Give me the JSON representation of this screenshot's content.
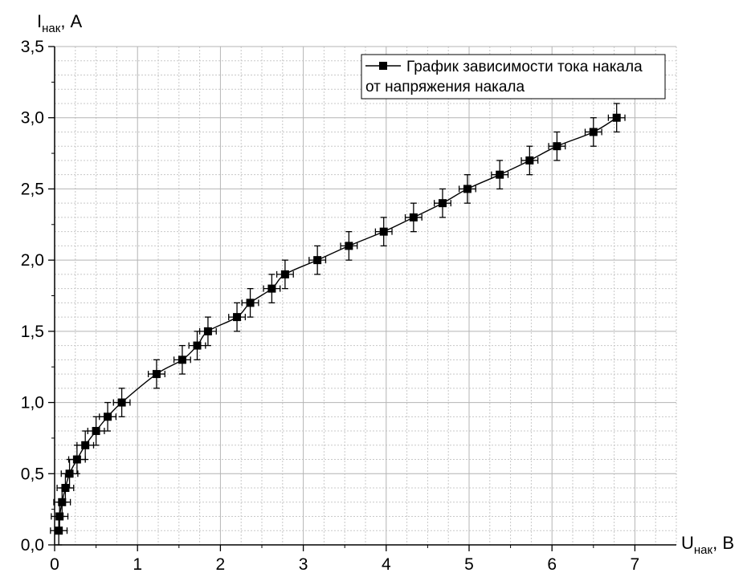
{
  "chart_data": {
    "type": "line",
    "series": [
      {
        "name": "График зависимости тока накала от напряжения накала",
        "x": [
          0.05,
          0.06,
          0.09,
          0.13,
          0.18,
          0.27,
          0.37,
          0.5,
          0.64,
          0.81,
          1.23,
          1.54,
          1.72,
          1.85,
          2.2,
          2.36,
          2.62,
          2.78,
          3.17,
          3.55,
          3.97,
          4.33,
          4.68,
          4.98,
          5.37,
          5.73,
          6.06,
          6.5,
          6.78
        ],
        "y": [
          0.1,
          0.2,
          0.3,
          0.4,
          0.5,
          0.6,
          0.7,
          0.8,
          0.9,
          1.0,
          1.2,
          1.3,
          1.4,
          1.5,
          1.6,
          1.7,
          1.8,
          1.9,
          2.0,
          2.1,
          2.2,
          2.3,
          2.4,
          2.5,
          2.6,
          2.7,
          2.8,
          2.9,
          3.0
        ],
        "x_err": 0.1,
        "y_err": 0.1
      }
    ],
    "legend": {
      "line1": "График зависимости тока накала",
      "line2": "от напряжения накала",
      "placement": "top-right"
    },
    "xaxis": {
      "label_main": "U",
      "label_sub": "нак",
      "label_unit": ", В",
      "ticks": [
        "0",
        "1",
        "2",
        "3",
        "4",
        "5",
        "6",
        "7"
      ],
      "lim": [
        0,
        7.5
      ]
    },
    "yaxis": {
      "label_main": "I",
      "label_sub": "нак",
      "label_unit": ", А",
      "ticks": [
        "0,0",
        "0,5",
        "1,0",
        "1,5",
        "2,0",
        "2,5",
        "3,0",
        "3,5"
      ],
      "lim": [
        0,
        3.5
      ]
    },
    "grid": true,
    "minor_grid": true,
    "colors": {
      "line": "#000000",
      "grid": "#c8c8c8",
      "axis": "#000000"
    }
  }
}
